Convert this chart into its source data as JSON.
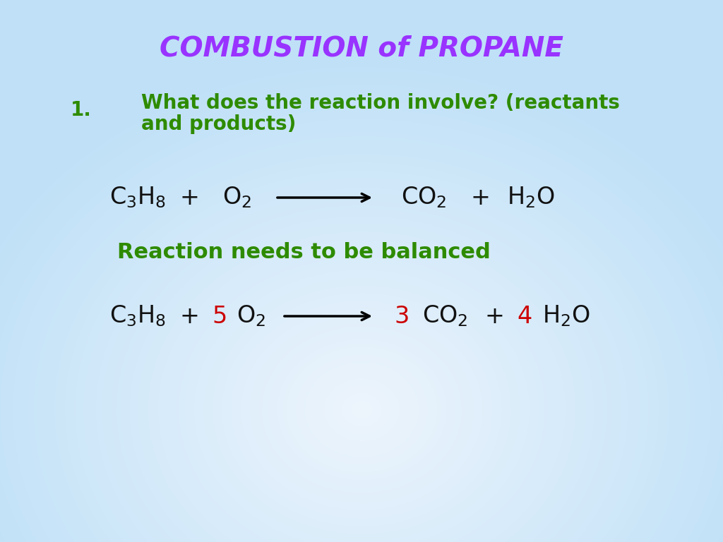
{
  "title": "COMBUSTION of PROPANE",
  "title_color": "#9933FF",
  "title_fontsize": 28,
  "question_number": "1.",
  "question_text_line1": "What does the reaction involve? (reactants",
  "question_text_line2": "and products)",
  "question_color": "#2E8B00",
  "question_fontsize": 20,
  "equation_color": "#111111",
  "red_color": "#CC0000",
  "balanced_text": "Reaction needs to be balanced",
  "balanced_color": "#2E8B00",
  "balanced_fontsize": 22,
  "eq_fontsize": 24
}
